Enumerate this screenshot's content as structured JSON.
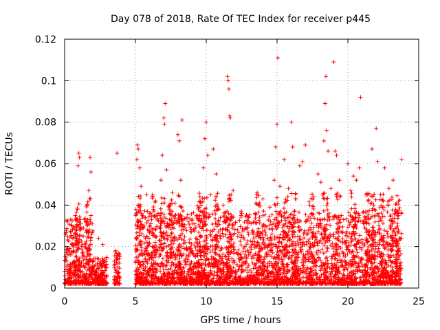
{
  "chart_data": {
    "type": "scatter",
    "title": "Day 078 of 2018, Rate Of TEC Index for receiver p445",
    "xlabel": "GPS time / hours",
    "ylabel": "ROTI / TECUs",
    "xlim": [
      0,
      25
    ],
    "ylim": [
      0,
      0.12
    ],
    "xticks": [
      0,
      5,
      10,
      15,
      20,
      25
    ],
    "xtick_labels": [
      "0",
      "5",
      "10",
      "15",
      "20",
      "25"
    ],
    "yticks": [
      0,
      0.02,
      0.04,
      0.06,
      0.08,
      0.1,
      0.12
    ],
    "ytick_labels": [
      "0",
      "0.02",
      "0.04",
      "0.06",
      "0.08",
      "0.1",
      "0.12"
    ],
    "grid": true,
    "marker": "+",
    "color": "#ff0000",
    "series": [
      {
        "name": "p445",
        "points": [
          [
            0.05,
            0.004
          ],
          [
            0.1,
            0.009
          ],
          [
            0.15,
            0.013
          ],
          [
            0.2,
            0.007
          ],
          [
            0.3,
            0.016
          ],
          [
            0.4,
            0.011
          ],
          [
            0.5,
            0.021
          ],
          [
            0.55,
            0.028
          ],
          [
            0.6,
            0.018
          ],
          [
            0.7,
            0.012
          ],
          [
            0.8,
            0.024
          ],
          [
            0.85,
            0.03
          ],
          [
            0.9,
            0.038
          ],
          [
            0.95,
            0.059
          ],
          [
            1.0,
            0.065
          ],
          [
            1.05,
            0.063
          ],
          [
            1.1,
            0.028
          ],
          [
            1.2,
            0.02
          ],
          [
            1.3,
            0.025
          ],
          [
            1.4,
            0.015
          ],
          [
            1.5,
            0.032
          ],
          [
            1.6,
            0.04
          ],
          [
            1.7,
            0.047
          ],
          [
            1.8,
            0.063
          ],
          [
            1.85,
            0.056
          ],
          [
            1.9,
            0.026
          ],
          [
            2.0,
            0.01
          ],
          [
            2.2,
            0.006
          ],
          [
            2.4,
            0.024
          ],
          [
            2.5,
            0.011
          ],
          [
            2.7,
            0.021
          ],
          [
            2.9,
            0.003
          ],
          [
            3.5,
            0.011
          ],
          [
            3.6,
            0.018
          ],
          [
            3.7,
            0.065
          ],
          [
            3.8,
            0.007
          ],
          [
            5.0,
            0.008
          ],
          [
            5.1,
            0.062
          ],
          [
            5.15,
            0.069
          ],
          [
            5.2,
            0.067
          ],
          [
            5.3,
            0.058
          ],
          [
            5.4,
            0.049
          ],
          [
            5.5,
            0.035
          ],
          [
            5.6,
            0.025
          ],
          [
            5.8,
            0.045
          ],
          [
            6.0,
            0.014
          ],
          [
            6.2,
            0.02
          ],
          [
            6.4,
            0.028
          ],
          [
            6.6,
            0.036
          ],
          [
            6.8,
            0.052
          ],
          [
            6.9,
            0.064
          ],
          [
            7.0,
            0.082
          ],
          [
            7.05,
            0.079
          ],
          [
            7.1,
            0.089
          ],
          [
            7.2,
            0.057
          ],
          [
            7.4,
            0.033
          ],
          [
            7.6,
            0.046
          ],
          [
            7.8,
            0.041
          ],
          [
            8.0,
            0.074
          ],
          [
            8.1,
            0.071
          ],
          [
            8.2,
            0.052
          ],
          [
            8.3,
            0.081
          ],
          [
            8.5,
            0.029
          ],
          [
            8.8,
            0.022
          ],
          [
            9.0,
            0.018
          ],
          [
            9.2,
            0.031
          ],
          [
            9.5,
            0.039
          ],
          [
            9.8,
            0.058
          ],
          [
            9.9,
            0.072
          ],
          [
            10.0,
            0.08
          ],
          [
            10.1,
            0.064
          ],
          [
            10.3,
            0.045
          ],
          [
            10.5,
            0.067
          ],
          [
            10.7,
            0.055
          ],
          [
            10.9,
            0.038
          ],
          [
            11.2,
            0.04
          ],
          [
            11.5,
            0.102
          ],
          [
            11.55,
            0.1
          ],
          [
            11.6,
            0.096
          ],
          [
            11.65,
            0.083
          ],
          [
            11.7,
            0.082
          ],
          [
            11.9,
            0.047
          ],
          [
            12.2,
            0.028
          ],
          [
            12.5,
            0.036
          ],
          [
            13.0,
            0.034
          ],
          [
            13.5,
            0.041
          ],
          [
            14.0,
            0.043
          ],
          [
            14.5,
            0.039
          ],
          [
            14.8,
            0.052
          ],
          [
            14.9,
            0.068
          ],
          [
            15.0,
            0.079
          ],
          [
            15.05,
            0.111
          ],
          [
            15.2,
            0.049
          ],
          [
            15.5,
            0.062
          ],
          [
            15.8,
            0.048
          ],
          [
            16.0,
            0.08
          ],
          [
            16.1,
            0.068
          ],
          [
            16.3,
            0.043
          ],
          [
            16.6,
            0.059
          ],
          [
            16.8,
            0.061
          ],
          [
            17.0,
            0.069
          ],
          [
            17.3,
            0.04
          ],
          [
            17.6,
            0.044
          ],
          [
            17.9,
            0.055
          ],
          [
            18.1,
            0.051
          ],
          [
            18.3,
            0.071
          ],
          [
            18.4,
            0.089
          ],
          [
            18.45,
            0.102
          ],
          [
            18.5,
            0.076
          ],
          [
            18.6,
            0.066
          ],
          [
            18.8,
            0.048
          ],
          [
            19.0,
            0.109
          ],
          [
            19.1,
            0.066
          ],
          [
            19.2,
            0.064
          ],
          [
            19.4,
            0.052
          ],
          [
            19.7,
            0.033
          ],
          [
            20.0,
            0.06
          ],
          [
            20.2,
            0.047
          ],
          [
            20.4,
            0.054
          ],
          [
            20.6,
            0.052
          ],
          [
            20.8,
            0.058
          ],
          [
            20.9,
            0.092
          ],
          [
            21.1,
            0.031
          ],
          [
            21.4,
            0.045
          ],
          [
            21.7,
            0.067
          ],
          [
            22.0,
            0.077
          ],
          [
            22.1,
            0.061
          ],
          [
            22.3,
            0.045
          ],
          [
            22.6,
            0.058
          ],
          [
            22.9,
            0.048
          ],
          [
            23.2,
            0.052
          ],
          [
            23.5,
            0.036
          ],
          [
            23.8,
            0.062
          ]
        ]
      }
    ]
  }
}
